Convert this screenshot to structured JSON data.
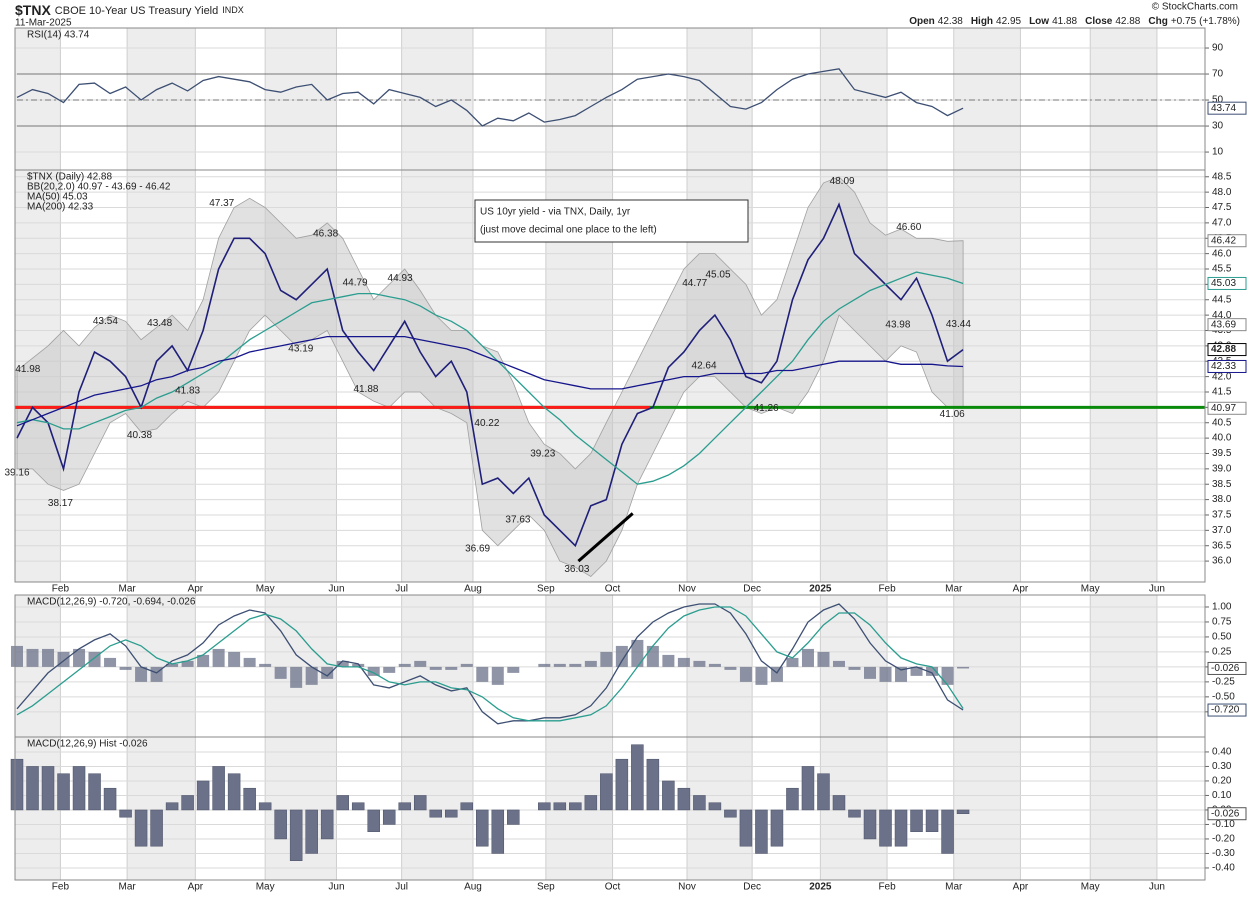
{
  "header": {
    "symbol": "$TNX",
    "name": "CBOE 10-Year US Treasury Yield",
    "exchange": "INDX",
    "date": "11-Mar-2025",
    "quote": [
      {
        "name": "Open",
        "value": 42.38
      },
      {
        "name": "High",
        "value": 42.95
      },
      {
        "name": "Low",
        "value": 41.88
      },
      {
        "name": "Close",
        "value": 42.88
      },
      {
        "name": "Chg",
        "value": 0.75,
        "label": "+0.75"
      },
      {
        "value": 1.78,
        "label": "(+1.78%)"
      }
    ],
    "copyright": "© StockCharts.com"
  },
  "chart_data": [
    {
      "type": "line",
      "ylim": [
        -3.8,
        105.4
      ],
      "yticks": [
        90,
        70,
        50,
        30,
        10
      ],
      "ref_lines": [
        70,
        50,
        30
      ],
      "series": [
        {
          "name": "RSI(14) 43.74",
          "color": "#3d4f73",
          "values": [
            52,
            58,
            55,
            48,
            62,
            63,
            55,
            60,
            50,
            58,
            63,
            57,
            65,
            68,
            66,
            64,
            58,
            56,
            60,
            62,
            50,
            55,
            56,
            47,
            58,
            55,
            52,
            45,
            50,
            42,
            30,
            36,
            34,
            40,
            33,
            35,
            38,
            45,
            52,
            58,
            66,
            68,
            70,
            68,
            65,
            55,
            45,
            43,
            48,
            58,
            66,
            70,
            72,
            74,
            58,
            55,
            52,
            56,
            48,
            45,
            38,
            43.74
          ]
        }
      ],
      "tags": [
        {
          "value": 43.74,
          "color": "#3d4f73"
        }
      ]
    },
    {
      "type": "line",
      "x": [
        0,
        1,
        2,
        3,
        4,
        5,
        6,
        7,
        8,
        9,
        10,
        11,
        12,
        13,
        14,
        15,
        16,
        17,
        18,
        19,
        20,
        21,
        22,
        23,
        24,
        25,
        26,
        27,
        28,
        29,
        30,
        31,
        32,
        33,
        34,
        35,
        36,
        37,
        38,
        39,
        40,
        41,
        42,
        43,
        44,
        45,
        46,
        47,
        48,
        49,
        50,
        51,
        52,
        53,
        54,
        55,
        56,
        57,
        58,
        59,
        60,
        61
      ],
      "xlim": [
        0,
        76.6
      ],
      "xticks": [
        {
          "value": 2.8,
          "label": "Feb"
        },
        {
          "value": 7.1,
          "label": "Mar"
        },
        {
          "value": 11.5,
          "label": "Apr"
        },
        {
          "value": 16.0,
          "label": "May"
        },
        {
          "value": 20.6,
          "label": "Jun"
        },
        {
          "value": 24.8,
          "label": "Jul"
        },
        {
          "value": 29.4,
          "label": "Aug"
        },
        {
          "value": 34.1,
          "label": "Sep"
        },
        {
          "value": 38.4,
          "label": "Oct"
        },
        {
          "value": 43.2,
          "label": "Nov"
        },
        {
          "value": 47.4,
          "label": "Dec"
        },
        {
          "value": 51.8,
          "label": "2025"
        },
        {
          "value": 56.1,
          "label": "Feb"
        },
        {
          "value": 60.4,
          "label": "Mar"
        },
        {
          "value": 64.7,
          "label": "Apr"
        },
        {
          "value": 69.2,
          "label": "May"
        },
        {
          "value": 73.5,
          "label": "Jun"
        }
      ],
      "ylim": [
        35.32,
        48.72
      ],
      "yticks": [
        {
          "value": 36,
          "label": "36.0"
        },
        36.5,
        {
          "value": 37,
          "label": "37.0"
        },
        37.5,
        {
          "value": 38,
          "label": "38.0"
        },
        38.5,
        {
          "value": 39,
          "label": "39.0"
        },
        39.5,
        {
          "value": 40,
          "label": "40.0"
        },
        40.5,
        {
          "value": 41,
          "label": "41.0"
        },
        41.5,
        {
          "value": 42,
          "label": "42.0"
        },
        42.5,
        {
          "value": 43,
          "label": "43.0"
        },
        43.5,
        {
          "value": 44,
          "label": "44.0"
        },
        44.5,
        {
          "value": 45,
          "label": "45.0"
        },
        45.5,
        {
          "value": 46,
          "label": "46.0"
        },
        46.5,
        {
          "value": 47,
          "label": "47.0"
        },
        47.5,
        {
          "value": 48,
          "label": "48.0"
        },
        48.5
      ],
      "bands": [
        {
          "name": "BB(20,2.0) 40.97 - 43.69 - 46.42",
          "color": "#a0a0a0",
          "upper": [
            42.2,
            42.6,
            43.0,
            43.5,
            43.0,
            43.6,
            44.0,
            43.8,
            43.2,
            43.6,
            44.0,
            43.5,
            44.5,
            46.5,
            47.5,
            47.8,
            47.5,
            47.0,
            46.5,
            46.6,
            47.0,
            46.5,
            45.5,
            44.5,
            45.0,
            45.5,
            44.8,
            44.0,
            43.5,
            43.5,
            43.0,
            42.8,
            41.8,
            40.5,
            39.8,
            39.5,
            39.0,
            39.5,
            40.5,
            41.5,
            42.5,
            43.5,
            44.5,
            45.5,
            46.0,
            46.0,
            45.5,
            45.0,
            44.0,
            44.5,
            46.0,
            47.5,
            48.3,
            48.5,
            48.0,
            47.0,
            46.6,
            46.8,
            46.5,
            46.5,
            46.4,
            46.42
          ],
          "lower": [
            39.0,
            39.0,
            38.5,
            38.3,
            38.5,
            39.5,
            40.5,
            40.8,
            40.2,
            40.3,
            40.8,
            41.2,
            41.0,
            41.5,
            42.5,
            43.5,
            44.0,
            43.5,
            43.0,
            43.2,
            43.5,
            42.5,
            41.5,
            41.2,
            41.0,
            41.5,
            41.5,
            41.0,
            40.8,
            40.5,
            37.0,
            36.5,
            37.0,
            37.5,
            37.0,
            36.0,
            35.8,
            35.5,
            36.0,
            37.0,
            38.5,
            39.5,
            40.5,
            41.5,
            42.0,
            42.0,
            41.5,
            41.0,
            40.8,
            41.0,
            40.8,
            41.5,
            42.5,
            44.0,
            43.5,
            43.0,
            42.5,
            43.0,
            42.8,
            41.5,
            41.0,
            40.97
          ]
        }
      ],
      "series": [
        {
          "name": "$TNX (Daily) 42.88",
          "color": "#1f1f7a",
          "values": [
            40.0,
            41.0,
            40.5,
            39.0,
            41.5,
            42.8,
            42.5,
            42.0,
            41.0,
            42.5,
            43.0,
            42.2,
            43.5,
            45.5,
            46.5,
            46.5,
            46.0,
            44.8,
            44.5,
            45.0,
            45.5,
            43.5,
            42.8,
            42.2,
            43.0,
            43.8,
            42.8,
            42.0,
            42.5,
            41.5,
            38.5,
            38.7,
            38.2,
            38.7,
            37.5,
            37.0,
            36.5,
            37.8,
            38.0,
            39.8,
            40.8,
            41.0,
            42.3,
            42.8,
            43.5,
            44.0,
            43.2,
            42.0,
            41.8,
            42.5,
            44.5,
            45.8,
            46.5,
            47.6,
            46.0,
            45.5,
            45.0,
            44.5,
            45.2,
            44.0,
            42.5,
            42.88
          ]
        },
        {
          "name": "MA(50) 45.03",
          "color": "#2a9d8f",
          "values": [
            40.5,
            40.6,
            40.5,
            40.3,
            40.3,
            40.5,
            40.7,
            40.9,
            41.0,
            41.3,
            41.5,
            41.8,
            42.1,
            42.4,
            42.8,
            43.2,
            43.5,
            43.8,
            44.1,
            44.4,
            44.5,
            44.6,
            44.7,
            44.7,
            44.6,
            44.5,
            44.3,
            44.0,
            43.8,
            43.5,
            43.0,
            42.5,
            42.0,
            41.5,
            41.0,
            40.6,
            40.1,
            39.7,
            39.3,
            38.9,
            38.5,
            38.6,
            38.8,
            39.1,
            39.5,
            40.0,
            40.5,
            41.0,
            41.5,
            42.0,
            42.5,
            43.2,
            43.8,
            44.2,
            44.5,
            44.8,
            45.0,
            45.2,
            45.4,
            45.3,
            45.2,
            45.03
          ]
        },
        {
          "name": "MA(200) 42.33",
          "color": "#16168c",
          "values": [
            40.4,
            40.6,
            40.8,
            41.0,
            41.2,
            41.4,
            41.5,
            41.6,
            41.7,
            41.9,
            42.0,
            42.2,
            42.3,
            42.5,
            42.6,
            42.8,
            42.9,
            43.0,
            43.1,
            43.2,
            43.3,
            43.3,
            43.3,
            43.3,
            43.3,
            43.3,
            43.2,
            43.1,
            43.0,
            42.9,
            42.7,
            42.5,
            42.3,
            42.1,
            41.9,
            41.8,
            41.7,
            41.6,
            41.6,
            41.6,
            41.7,
            41.8,
            41.9,
            42.0,
            42.0,
            42.1,
            42.1,
            42.1,
            42.1,
            42.2,
            42.2,
            42.3,
            42.4,
            42.5,
            42.5,
            42.5,
            42.5,
            42.4,
            42.4,
            42.4,
            42.35,
            42.33
          ]
        }
      ],
      "high_labels": [
        {
          "x": 0.7,
          "value": 41.98
        },
        {
          "x": 5.7,
          "value": 43.54
        },
        {
          "x": 9.2,
          "value": 43.48
        },
        {
          "x": 13.2,
          "value": 47.37
        },
        {
          "x": 19.9,
          "value": 46.38
        },
        {
          "x": 21.8,
          "value": 44.79
        },
        {
          "x": 24.7,
          "value": 44.93
        },
        {
          "x": 30.3,
          "value": 40.22
        },
        {
          "x": 33.9,
          "value": 39.23
        },
        {
          "x": 43.7,
          "value": 44.77
        },
        {
          "x": 45.2,
          "value": 45.05
        },
        {
          "x": 53.2,
          "value": 48.09
        },
        {
          "x": 57.5,
          "value": 46.6,
          "label": "46.60"
        },
        {
          "x": 60.7,
          "value": 43.44
        }
      ],
      "low_labels": [
        {
          "x": 0.0,
          "value": 39.16
        },
        {
          "x": 2.8,
          "value": 38.17
        },
        {
          "x": 7.9,
          "value": 40.38
        },
        {
          "x": 11.0,
          "value": 41.83
        },
        {
          "x": 18.3,
          "value": 43.19
        },
        {
          "x": 22.5,
          "value": 41.88
        },
        {
          "x": 29.7,
          "value": 36.69
        },
        {
          "x": 32.3,
          "value": 37.63
        },
        {
          "x": 36.1,
          "value": 36.03
        },
        {
          "x": 44.3,
          "value": 42.64
        },
        {
          "x": 48.3,
          "value": 41.26
        },
        {
          "x": 56.8,
          "value": 43.98
        },
        {
          "x": 60.3,
          "value": 41.06
        }
      ],
      "hlines": [
        {
          "value": 41.0,
          "color": "#0a8a0a"
        },
        {
          "value": 41.0,
          "color": "#ff1a1a",
          "x_end": 40.8
        }
      ],
      "trendlines": [
        {
          "x": [
            36.2,
            39.7
          ],
          "values": [
            36.0,
            37.55
          ],
          "color": "#000000"
        }
      ],
      "annotation": [
        "US 10yr yield - via TNX, Daily, 1yr",
        "(just move decimal one place to the left)"
      ],
      "tags": [
        {
          "value": 46.42,
          "color": "#8a8a8a"
        },
        {
          "value": 45.03,
          "color": "#2a9d8f"
        },
        {
          "value": 43.69,
          "color": "#8a8a8a"
        },
        {
          "value": 42.88,
          "color": "#000000"
        },
        {
          "value": 42.33,
          "color": "#16168c"
        },
        {
          "value": 40.97,
          "color": "#8a8a8a"
        }
      ]
    },
    {
      "type": "line",
      "ylim": [
        -1.17,
        1.2
      ],
      "yticks": [
        {
          "value": 1,
          "label": "1.00"
        },
        0.75,
        {
          "value": 0.5,
          "label": "0.50"
        },
        0.25,
        {
          "value": 0,
          "label": "0.00"
        },
        -0.25,
        {
          "value": -0.5,
          "label": "-0.50"
        },
        -0.75
      ],
      "series": [
        {
          "name": "MACD(12,26,9) -0.720, -0.694, -0.026",
          "color": "#3d4f73",
          "values": [
            -0.7,
            -0.4,
            -0.1,
            0.1,
            0.3,
            0.45,
            0.55,
            0.35,
            0,
            -0.1,
            0.1,
            0.2,
            0.4,
            0.7,
            0.85,
            0.95,
            0.9,
            0.6,
            0.2,
            0,
            -0.15,
            0.1,
            0.05,
            -0.3,
            -0.35,
            -0.25,
            -0.15,
            -0.3,
            -0.4,
            -0.35,
            -0.75,
            -0.95,
            -0.9,
            -0.9,
            -0.85,
            -0.85,
            -0.8,
            -0.65,
            -0.35,
            0.1,
            0.5,
            0.75,
            0.9,
            1,
            1.05,
            1.05,
            0.9,
            0.55,
            0.1,
            -0.1,
            0.3,
            0.75,
            0.95,
            1.05,
            0.8,
            0.4,
            0.1,
            -0.05,
            0,
            -0.1,
            -0.55,
            -0.72
          ]
        },
        {
          "color": "#2a9d8f",
          "values": [
            -0.8,
            -0.65,
            -0.45,
            -0.25,
            -0.05,
            0.15,
            0.35,
            0.45,
            0.35,
            0.15,
            0.05,
            0.1,
            0.2,
            0.4,
            0.6,
            0.8,
            0.88,
            0.8,
            0.6,
            0.3,
            0.05,
            0,
            0,
            -0.1,
            -0.25,
            -0.3,
            -0.25,
            -0.25,
            -0.35,
            -0.38,
            -0.5,
            -0.7,
            -0.85,
            -0.9,
            -0.9,
            -0.9,
            -0.85,
            -0.8,
            -0.65,
            -0.35,
            0,
            0.35,
            0.65,
            0.85,
            0.95,
            1,
            1,
            0.85,
            0.55,
            0.25,
            0.15,
            0.4,
            0.7,
            0.9,
            0.9,
            0.7,
            0.4,
            0.15,
            0.05,
            0,
            -0.3,
            -0.694
          ]
        }
      ],
      "tags": [
        {
          "value": -0.026,
          "color": "#555555"
        },
        {
          "value": -0.72,
          "label": "-0.720",
          "color": "#3d4f73"
        }
      ]
    },
    {
      "type": "bar",
      "name": "MACD(12,26,9) Hist -0.026",
      "color": "#6a7188",
      "ylim": [
        -0.483,
        0.503
      ],
      "yticks": [
        {
          "value": 0.4,
          "label": "0.40"
        },
        {
          "value": 0.3,
          "label": "0.30"
        },
        {
          "value": 0.2,
          "label": "0.20"
        },
        {
          "value": 0.1,
          "label": "0.10"
        },
        {
          "value": 0,
          "label": "0.00"
        },
        {
          "value": -0.1,
          "label": "-0.10"
        },
        {
          "value": -0.2,
          "label": "-0.20"
        },
        {
          "value": -0.3,
          "label": "-0.30"
        },
        {
          "value": -0.4,
          "label": "-0.40"
        }
      ],
      "values": [
        0.35,
        0.3,
        0.3,
        0.25,
        0.3,
        0.25,
        0.15,
        -0.05,
        -0.25,
        -0.25,
        0.05,
        0.1,
        0.2,
        0.3,
        0.25,
        0.15,
        0.05,
        -0.2,
        -0.35,
        -0.3,
        -0.2,
        0.1,
        0.05,
        -0.15,
        -0.1,
        0.05,
        0.1,
        -0.05,
        -0.05,
        0.05,
        -0.25,
        -0.3,
        -0.1,
        0,
        0.05,
        0.05,
        0.05,
        0.1,
        0.25,
        0.35,
        0.45,
        0.35,
        0.2,
        0.15,
        0.1,
        0.05,
        -0.05,
        -0.25,
        -0.3,
        -0.25,
        0.15,
        0.3,
        0.25,
        0.1,
        -0.05,
        -0.2,
        -0.25,
        -0.25,
        -0.15,
        -0.15,
        -0.3,
        -0.026
      ],
      "tags": [
        {
          "value": -0.026,
          "color": "#555555"
        }
      ]
    }
  ]
}
